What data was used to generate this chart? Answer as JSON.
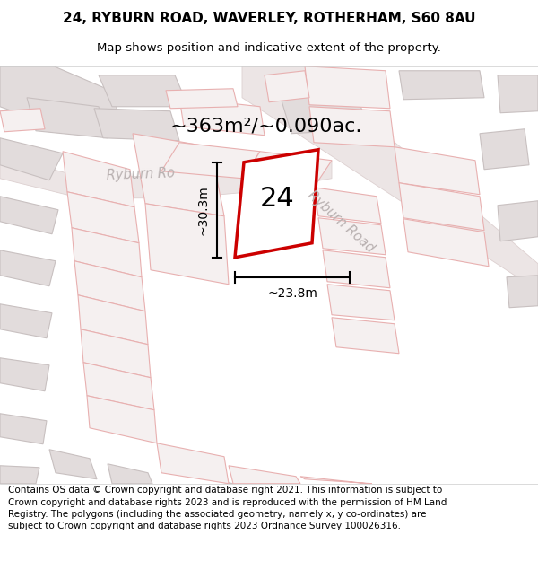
{
  "title_line1": "24, RYBURN ROAD, WAVERLEY, ROTHERHAM, S60 8AU",
  "title_line2": "Map shows position and indicative extent of the property.",
  "footer_text": "Contains OS data © Crown copyright and database right 2021. This information is subject to Crown copyright and database rights 2023 and is reproduced with the permission of HM Land Registry. The polygons (including the associated geometry, namely x, y co-ordinates) are subject to Crown copyright and database rights 2023 Ordnance Survey 100026316.",
  "area_label": "~363m²/~0.090ac.",
  "number_label": "24",
  "width_label": "~23.8m",
  "height_label": "~30.3m",
  "road_label_upper": "Ryburn Ro",
  "road_label_lower": "Ryburn Road",
  "bg_color": "#f0eded",
  "plot_fill": "#ffffff",
  "plot_edge": "#dd0000",
  "gray_fill": "#e2dcdc",
  "gray_edge": "#c8c0c0",
  "pink_fill": "#f5f0f0",
  "pink_edge": "#e8b0b0",
  "road_band_fill": "#ede5e5",
  "road_band_edge": "#ddd0d0",
  "title_fontsize": 11,
  "subtitle_fontsize": 9.5,
  "footer_fontsize": 7.5,
  "area_fontsize": 16,
  "number_fontsize": 22,
  "dim_fontsize": 10
}
